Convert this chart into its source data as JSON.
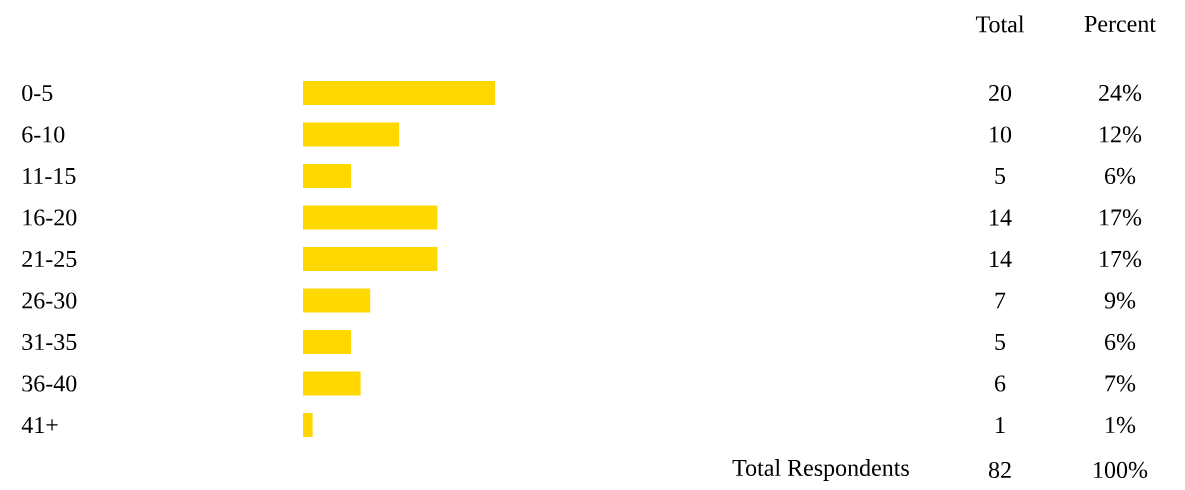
{
  "chart_data": {
    "type": "bar",
    "orientation": "horizontal",
    "color": "#ffd800",
    "data_labels": true,
    "categories": [
      "0-5",
      "6-10",
      "11-15",
      "16-20",
      "21-25",
      "26-30",
      "31-35",
      "36-40",
      "41+"
    ],
    "values": [
      20,
      10,
      5,
      14,
      14,
      7,
      5,
      6,
      1
    ],
    "annotations": [
      "Total",
      "Percent",
      "24%",
      "12%",
      "6%",
      "17%",
      "17%",
      "9%",
      "6%",
      "7%",
      "1%",
      "Total Respondents",
      "82",
      "100%"
    ]
  }
}
